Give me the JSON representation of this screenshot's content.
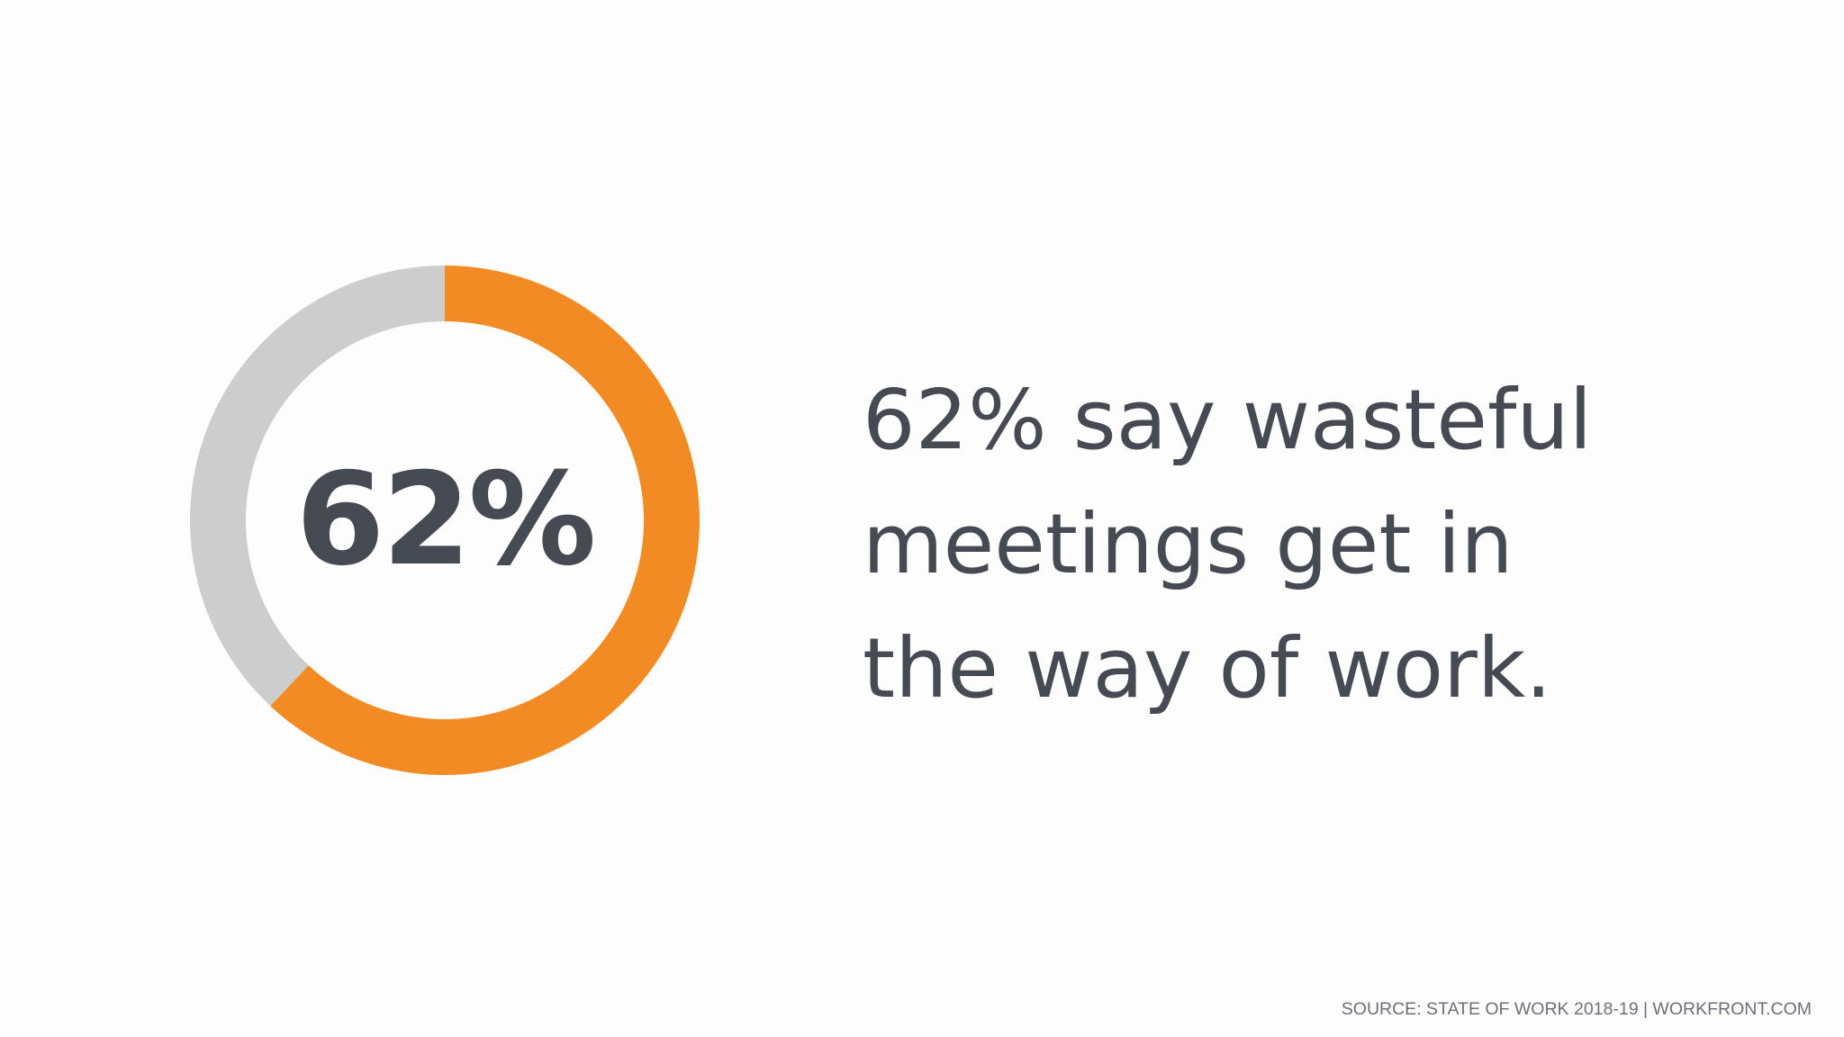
{
  "chart_data": {
    "type": "pie",
    "style": "donut",
    "center_label": "62%",
    "start_angle": "12 o'clock, clockwise",
    "slices": [
      {
        "value": 62,
        "color": "#f38b24"
      },
      {
        "value": 38,
        "color": "#cdcdcd"
      }
    ]
  },
  "headline": {
    "lines": [
      "62% say wasteful",
      "meetings get in",
      "the way of work."
    ]
  },
  "footer": {
    "source": "SOURCE: STATE OF WORK 2018-19  |  WORKFRONT.COM"
  },
  "colors": {
    "accent": "#f38b24",
    "track": "#cdcdcd",
    "text": "#454a53",
    "footer_text": "#6c7078",
    "background": "#fdfdfd"
  }
}
